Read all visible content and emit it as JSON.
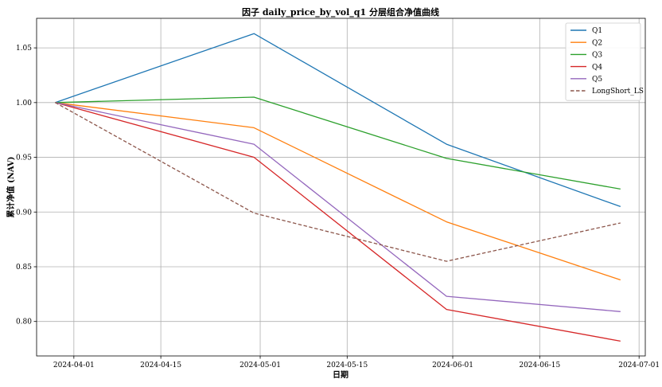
{
  "chart_data": {
    "type": "line",
    "title": "因子 daily_price_by_vol_q1 分层组合净值曲线",
    "xlabel": "日期",
    "ylabel": "累计净值 (NAV)",
    "x": [
      "2024-03-29",
      "2024-04-30",
      "2024-05-31",
      "2024-06-28"
    ],
    "xlim": [
      "2024-03-26",
      "2024-07-02"
    ],
    "ylim": [
      0.7685,
      1.077
    ],
    "x_ticks": [
      "2024-04-01",
      "2024-04-15",
      "2024-05-01",
      "2024-05-15",
      "2024-06-01",
      "2024-06-15",
      "2024-07-01"
    ],
    "y_ticks": [
      "0.80",
      "0.85",
      "0.90",
      "0.95",
      "1.00",
      "1.05"
    ],
    "grid": true,
    "legend_position": "top-right",
    "series": [
      {
        "name": "Q1",
        "color": "#1f77b4",
        "dash": "solid",
        "values": [
          1.0,
          1.063,
          0.962,
          0.905
        ]
      },
      {
        "name": "Q2",
        "color": "#ff7f0e",
        "dash": "solid",
        "values": [
          1.0,
          0.977,
          0.891,
          0.838
        ]
      },
      {
        "name": "Q3",
        "color": "#2ca02c",
        "dash": "solid",
        "values": [
          1.0,
          1.005,
          0.949,
          0.921
        ]
      },
      {
        "name": "Q4",
        "color": "#d62728",
        "dash": "solid",
        "values": [
          1.0,
          0.95,
          0.811,
          0.782
        ]
      },
      {
        "name": "Q5",
        "color": "#9467bd",
        "dash": "solid",
        "values": [
          1.0,
          0.962,
          0.823,
          0.809
        ]
      },
      {
        "name": "LongShort_LS",
        "color": "#8c564b",
        "dash": "dashed",
        "values": [
          1.0,
          0.899,
          0.855,
          0.89
        ]
      }
    ]
  }
}
